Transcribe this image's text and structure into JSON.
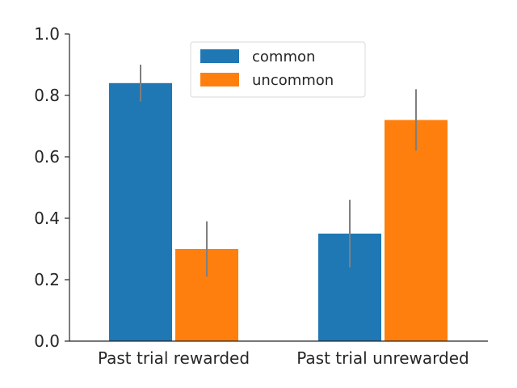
{
  "chart_data": {
    "type": "bar",
    "categories": [
      "Past trial rewarded",
      "Past trial unrewarded"
    ],
    "series": [
      {
        "name": "common",
        "color": "#1f77b4",
        "values": [
          0.84,
          0.35
        ],
        "error": [
          0.06,
          0.11
        ]
      },
      {
        "name": "uncommon",
        "color": "#ff7f0e",
        "values": [
          0.3,
          0.72
        ],
        "error": [
          0.09,
          0.1
        ]
      }
    ],
    "yticks": [
      "0.0",
      "0.2",
      "0.4",
      "0.6",
      "0.8",
      "1.0"
    ],
    "ylim": [
      0,
      1.0
    ],
    "error_bar_color": "#7f7f7f",
    "grid": false,
    "legend_position": "top-center"
  }
}
